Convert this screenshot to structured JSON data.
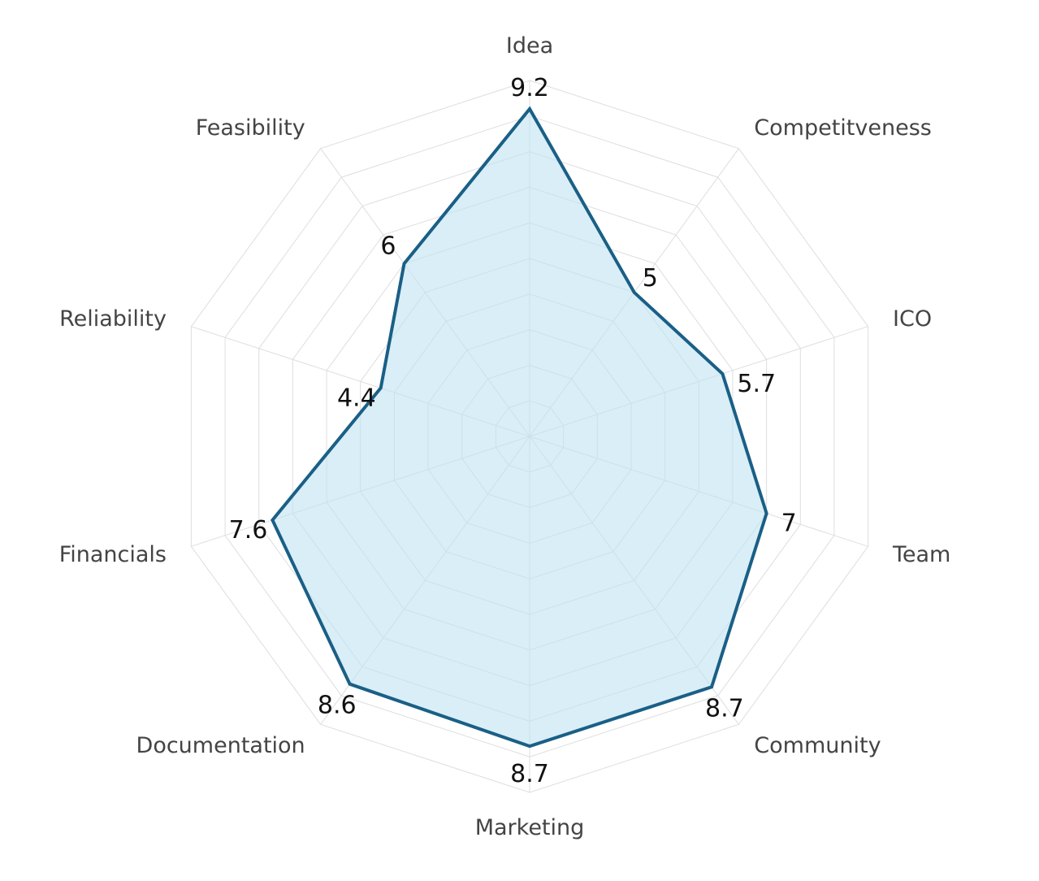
{
  "chart_data": {
    "type": "radar",
    "title": "",
    "categories": [
      "Idea",
      "Competitveness",
      "ICO",
      "Team",
      "Community",
      "Marketing",
      "Documentation",
      "Financials",
      "Reliability",
      "Feasibility"
    ],
    "values": [
      9.2,
      5,
      5.7,
      7,
      8.7,
      8.7,
      8.6,
      7.6,
      4.4,
      6
    ],
    "value_labels": [
      "9.2",
      "5",
      "5.7",
      "7",
      "8.7",
      "8.7",
      "8.6",
      "7.6",
      "4.4",
      "6"
    ],
    "rlim": [
      0,
      10
    ],
    "grid_step": 1,
    "grid": true,
    "legend": "none"
  },
  "colors": {
    "line": "#1a5f86",
    "fill": "#bfe3f1",
    "grid": "#dedede",
    "axis_label": "#444444",
    "value_label": "#111111"
  }
}
